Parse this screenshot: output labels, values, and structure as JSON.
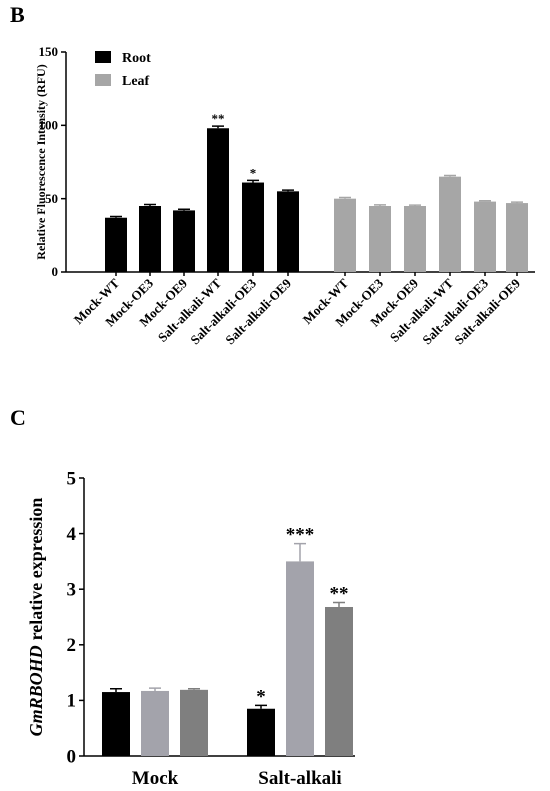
{
  "chart_data": [
    {
      "type": "bar",
      "panel": "B",
      "ylabel": "Relative Fluorescence Intensity (RFU)",
      "categories": [
        "Mock-WT",
        "Mock-OE3",
        "Mock-OE9",
        "Salt-alkali-WT",
        "Salt-alkali-OE3",
        "Salt-alkali-OE9",
        "Mock-WT",
        "Mock-OE3",
        "Mock-OE9",
        "Salt-alkali-WT",
        "Salt-alkali-OE3",
        "Salt-alkali-OE9"
      ],
      "series": [
        {
          "name": "Root",
          "color": "#000000",
          "values": [
            37,
            45,
            42,
            98,
            61,
            55,
            null,
            null,
            null,
            null,
            null,
            null
          ],
          "errors": [
            0.8,
            1,
            0.8,
            1.5,
            1.5,
            0.8,
            null,
            null,
            null,
            null,
            null,
            null
          ],
          "significance": [
            null,
            null,
            null,
            "**",
            "*",
            null,
            null,
            null,
            null,
            null,
            null,
            null
          ]
        },
        {
          "name": "Leaf",
          "color": "#a6a6a6",
          "values": [
            null,
            null,
            null,
            null,
            null,
            null,
            50,
            45,
            45,
            65,
            48,
            47
          ],
          "errors": [
            null,
            null,
            null,
            null,
            null,
            null,
            0.8,
            0.8,
            0.6,
            0.8,
            0.6,
            0.6
          ],
          "significance": [
            null,
            null,
            null,
            null,
            null,
            null,
            null,
            null,
            null,
            null,
            null,
            null
          ]
        }
      ],
      "ylim": [
        0,
        150
      ],
      "yticks": [
        0,
        50,
        100,
        150
      ],
      "legend": "top-left"
    },
    {
      "type": "grouped-bar",
      "panel": "C",
      "ylabel_gene": "GmRBOHD",
      "ylabel": "relative expression",
      "categories": [
        "Mock",
        "Salt-alkali"
      ],
      "series": [
        {
          "color": "#000000",
          "values": [
            1.15,
            0.85
          ],
          "errors": [
            0.06,
            0.06
          ],
          "significance": [
            null,
            "*"
          ]
        },
        {
          "color": "#a3a3ab",
          "values": [
            1.17,
            3.5
          ],
          "errors": [
            0.05,
            0.32
          ],
          "significance": [
            null,
            "***"
          ]
        },
        {
          "color": "#7f7f7f",
          "values": [
            1.19,
            2.68
          ],
          "errors": [
            0.02,
            0.08
          ],
          "significance": [
            null,
            "**"
          ]
        }
      ],
      "ylim": [
        0,
        5
      ],
      "yticks": [
        0,
        1,
        2,
        3,
        4,
        5
      ]
    }
  ]
}
